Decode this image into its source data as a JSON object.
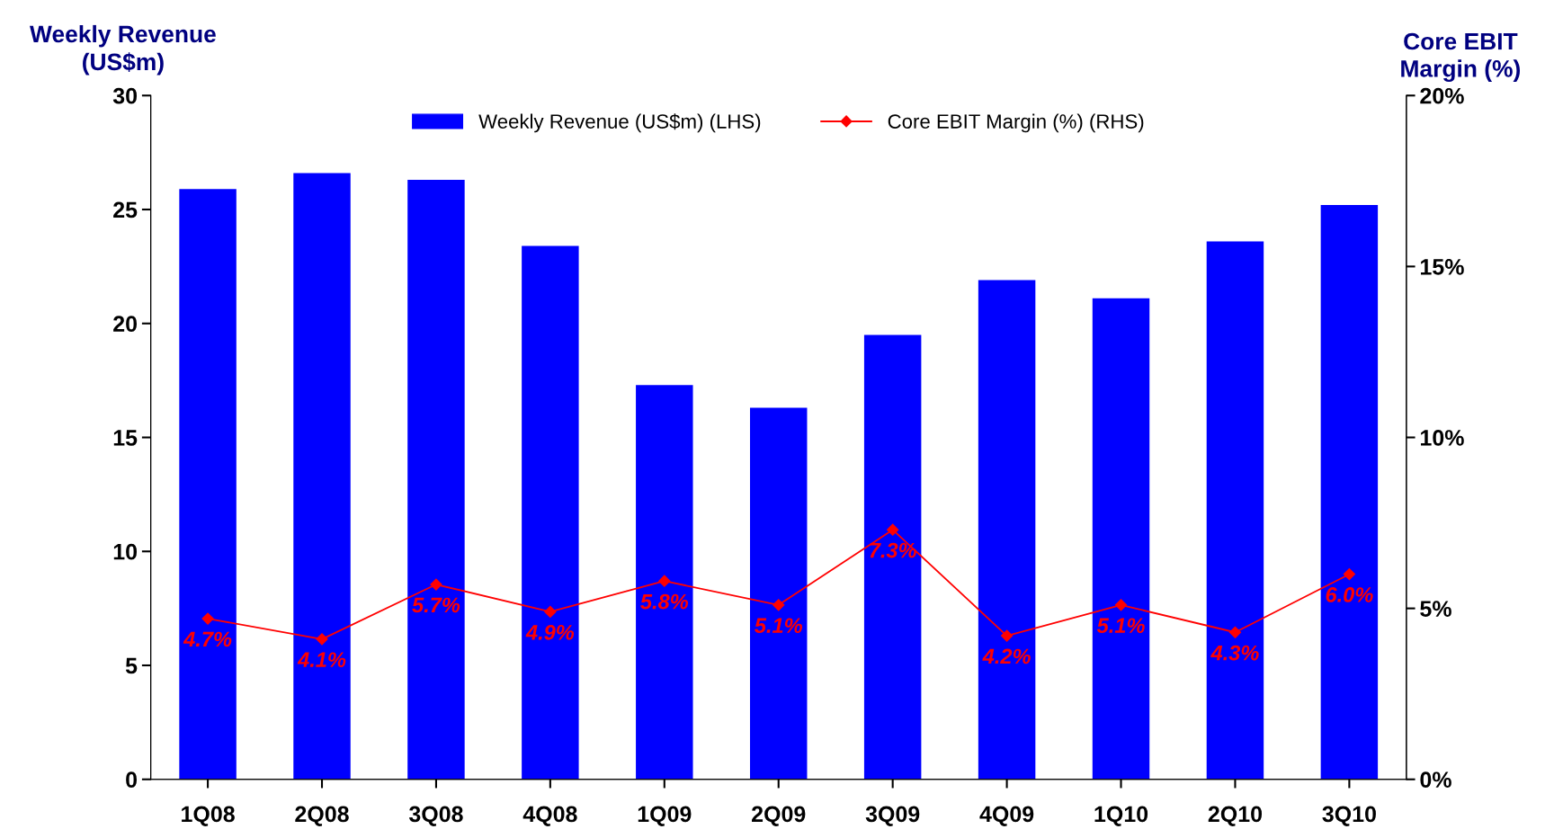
{
  "chart_data": {
    "type": "bar",
    "ylabel": "Weekly Revenue\n(US$m)",
    "y2label": "Core EBIT\nMargin (%)",
    "categories": [
      "1Q08",
      "2Q08",
      "3Q08",
      "4Q08",
      "1Q09",
      "2Q09",
      "3Q09",
      "4Q09",
      "1Q10",
      "2Q10",
      "3Q10"
    ],
    "series": [
      {
        "name": "Weekly Revenue (US$m) (LHS)",
        "color": "#0000ff",
        "values": [
          25.9,
          26.6,
          26.3,
          23.4,
          17.3,
          16.3,
          19.5,
          21.9,
          21.1,
          23.6,
          25.2
        ]
      },
      {
        "name": "Core EBIT Margin (%) (RHS)",
        "type": "line",
        "axis": "y2",
        "color": "#ff0000",
        "marker": "diamond",
        "values": [
          4.7,
          4.1,
          5.7,
          4.9,
          5.8,
          5.1,
          7.3,
          4.2,
          5.1,
          4.3,
          6.0
        ],
        "value_labels": [
          "4.7%",
          "4.1%",
          "5.7%",
          "4.9%",
          "5.8%",
          "5.1%",
          "7.3%",
          "4.2%",
          "5.1%",
          "4.3%",
          "6.0%"
        ]
      }
    ],
    "ylim": [
      0,
      30
    ],
    "yticks": [
      0,
      5,
      10,
      15,
      20,
      25,
      30
    ],
    "y2lim": [
      0,
      20
    ],
    "y2ticks": [
      {
        "value": 0,
        "label": "0%"
      },
      {
        "value": 5,
        "label": "5%"
      },
      {
        "value": 10,
        "label": "10%"
      },
      {
        "value": 15,
        "label": "15%"
      },
      {
        "value": 20,
        "label": "20%"
      }
    ],
    "grid": false,
    "legend": "top"
  }
}
